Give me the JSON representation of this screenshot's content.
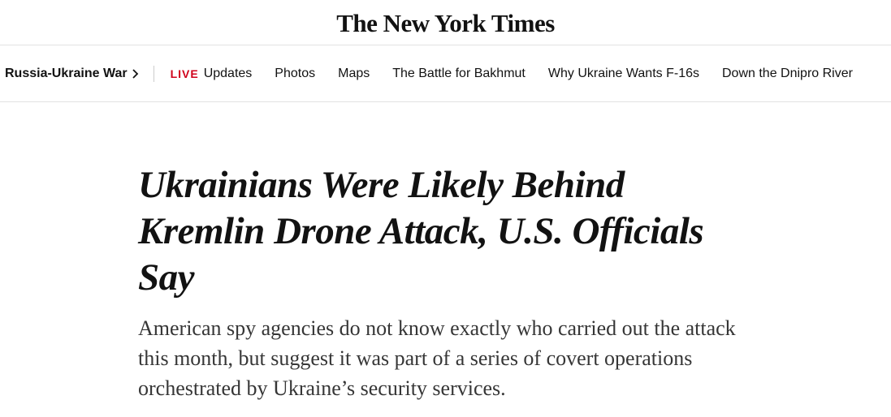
{
  "masthead": {
    "title": "The New York Times"
  },
  "nav": {
    "section": "Russia-Ukraine War",
    "live": "LIVE",
    "items": [
      "Updates",
      "Photos",
      "Maps",
      "The Battle for Bakhmut",
      "Why Ukraine Wants F-16s",
      "Down the Dnipro River"
    ]
  },
  "article": {
    "headline": "Ukrainians Were Likely Behind Kremlin Drone Attack, U.S. Officials Say",
    "summary": "American spy agencies do not know exactly who carried out the attack this month, but suggest it was part of a series of covert operations orchestrated by Ukraine’s security services."
  }
}
